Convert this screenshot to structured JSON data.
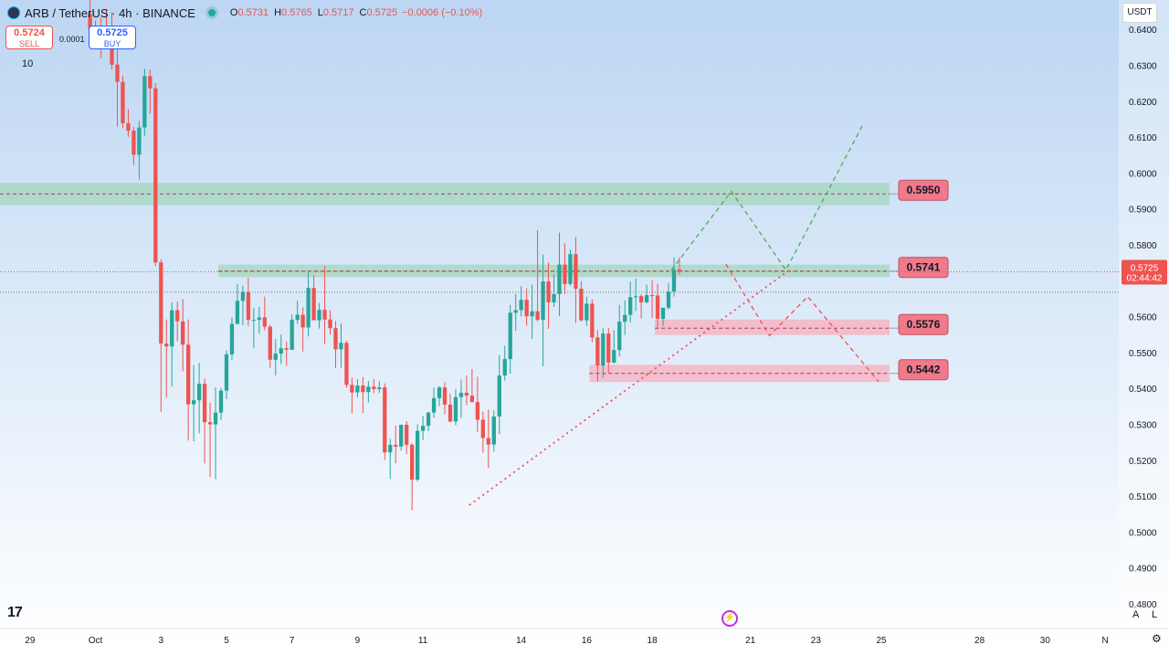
{
  "header": {
    "symbol": "ARB / TetherUS · 4h · BINANCE",
    "open_label": "O",
    "open": "0.5731",
    "high_label": "H",
    "high": "0.5765",
    "low_label": "L",
    "low": "0.5717",
    "close_label": "C",
    "close": "0.5725",
    "change": "−0.0006 (−0.10%)"
  },
  "trade": {
    "sell_price": "0.5724",
    "sell_label": "SELL",
    "buy_price": "0.5725",
    "buy_label": "BUY",
    "spread": "0.0001"
  },
  "indicator_count": "10",
  "currency_button": "USDT",
  "logo_text": "17",
  "scale_buttons": {
    "auto": "A",
    "log": "L"
  },
  "colors": {
    "up": "#26a69a",
    "down": "#ef5350",
    "bg_top": "#bcd6f3",
    "bg_bottom": "#ffffff",
    "support_zone": "#a8d8c4",
    "resistance_zone": "#f4b6c6",
    "level_badge": "#f07a8a"
  },
  "chart_data": {
    "type": "candlestick",
    "title": "",
    "x_type": "time-4h",
    "x_ticks": [
      {
        "label": "29",
        "bar": -11
      },
      {
        "label": "Oct",
        "bar": 1
      },
      {
        "label": "3",
        "bar": 13
      },
      {
        "label": "5",
        "bar": 25
      },
      {
        "label": "7",
        "bar": 37
      },
      {
        "label": "9",
        "bar": 49
      },
      {
        "label": "11",
        "bar": 61
      },
      {
        "label": "14",
        "bar": 79
      },
      {
        "label": "16",
        "bar": 91
      },
      {
        "label": "18",
        "bar": 103
      },
      {
        "label": "21",
        "bar": 121
      },
      {
        "label": "23",
        "bar": 133
      },
      {
        "label": "25",
        "bar": 145
      },
      {
        "label": "28",
        "bar": 163
      },
      {
        "label": "30",
        "bar": 175
      },
      {
        "label": "N",
        "bar": 186
      }
    ],
    "y_ticks": [
      "0.6400",
      "0.6300",
      "0.6200",
      "0.6100",
      "0.6000",
      "0.5900",
      "0.5800",
      "0.5700",
      "0.5600",
      "0.5500",
      "0.5400",
      "0.5300",
      "0.5200",
      "0.5100",
      "0.5000",
      "0.4900",
      "0.4800"
    ],
    "ylim": [
      0.4795,
      0.6482
    ],
    "xlim_bars": [
      -16,
      189
    ],
    "grid": false,
    "candles": [
      [
        0.6443,
        0.6496,
        0.6401,
        0.6371
      ],
      [
        0.6371,
        0.6425,
        0.641,
        0.6369
      ],
      [
        0.641,
        0.6433,
        0.6396,
        0.632
      ],
      [
        0.6396,
        0.6457,
        0.6367,
        0.6373
      ],
      [
        0.6367,
        0.6448,
        0.6302,
        0.6289
      ],
      [
        0.6302,
        0.6344,
        0.6254,
        0.6129
      ],
      [
        0.6254,
        0.6271,
        0.6139,
        0.6125
      ],
      [
        0.6139,
        0.6178,
        0.6118,
        0.6101
      ],
      [
        0.6118,
        0.6128,
        0.6051,
        0.6023
      ],
      [
        0.6051,
        0.6145,
        0.6127,
        0.5982
      ],
      [
        0.6127,
        0.6291,
        0.627,
        0.6104
      ],
      [
        0.627,
        0.6288,
        0.6236,
        0.6165
      ],
      [
        0.6236,
        0.625,
        0.5751,
        0.5741
      ],
      [
        0.5751,
        0.576,
        0.5525,
        0.5334
      ],
      [
        0.5525,
        0.5592,
        0.5517,
        0.5374
      ],
      [
        0.5517,
        0.564,
        0.5618,
        0.5406
      ],
      [
        0.5618,
        0.5642,
        0.5587,
        0.5531
      ],
      [
        0.5587,
        0.5649,
        0.5522,
        0.5448
      ],
      [
        0.5522,
        0.5592,
        0.5356,
        0.5255
      ],
      [
        0.5356,
        0.5465,
        0.5367,
        0.5253
      ],
      [
        0.5367,
        0.5471,
        0.5413,
        0.5275
      ],
      [
        0.5413,
        0.5428,
        0.5306,
        0.5191
      ],
      [
        0.5306,
        0.536,
        0.53,
        0.5153
      ],
      [
        0.53,
        0.5403,
        0.5333,
        0.5147
      ],
      [
        0.5333,
        0.5402,
        0.5394,
        0.5312
      ],
      [
        0.5394,
        0.5506,
        0.5495,
        0.537
      ],
      [
        0.5495,
        0.5598,
        0.558,
        0.5478
      ],
      [
        0.558,
        0.5691,
        0.5644,
        0.5578
      ],
      [
        0.5644,
        0.5686,
        0.5669,
        0.5576
      ],
      [
        0.5669,
        0.5708,
        0.5591,
        0.5574
      ],
      [
        0.5591,
        0.5624,
        0.5591,
        0.5512
      ],
      [
        0.5591,
        0.5627,
        0.5598,
        0.5553
      ],
      [
        0.5598,
        0.5656,
        0.5572,
        0.5562
      ],
      [
        0.5572,
        0.5577,
        0.548,
        0.5458
      ],
      [
        0.548,
        0.5538,
        0.5497,
        0.5436
      ],
      [
        0.5497,
        0.555,
        0.5512,
        0.5468
      ],
      [
        0.5512,
        0.5531,
        0.5508,
        0.5463
      ],
      [
        0.5508,
        0.5606,
        0.5591,
        0.5507
      ],
      [
        0.5591,
        0.5644,
        0.5605,
        0.558
      ],
      [
        0.5605,
        0.5626,
        0.557,
        0.5503
      ],
      [
        0.557,
        0.5724,
        0.568,
        0.5545
      ],
      [
        0.568,
        0.5716,
        0.559,
        0.559
      ],
      [
        0.559,
        0.5638,
        0.5619,
        0.5567
      ],
      [
        0.5619,
        0.5741,
        0.5592,
        0.5524
      ],
      [
        0.5592,
        0.5618,
        0.5568,
        0.555
      ],
      [
        0.5568,
        0.5588,
        0.5509,
        0.5457
      ],
      [
        0.5509,
        0.5581,
        0.5527,
        0.5458
      ],
      [
        0.5527,
        0.5533,
        0.541,
        0.5402
      ],
      [
        0.541,
        0.543,
        0.5389,
        0.5331
      ],
      [
        0.5389,
        0.5426,
        0.5408,
        0.5375
      ],
      [
        0.5408,
        0.5432,
        0.539,
        0.5332
      ],
      [
        0.539,
        0.5421,
        0.5405,
        0.5361
      ],
      [
        0.5405,
        0.5426,
        0.5398,
        0.5387
      ],
      [
        0.5398,
        0.542,
        0.5403,
        0.5387
      ],
      [
        0.5403,
        0.5414,
        0.5222,
        0.5201
      ],
      [
        0.5222,
        0.526,
        0.5243,
        0.5148
      ],
      [
        0.5243,
        0.5296,
        0.5238,
        0.5192
      ],
      [
        0.5238,
        0.5299,
        0.5299,
        0.5227
      ],
      [
        0.5299,
        0.5309,
        0.5243,
        0.5217
      ],
      [
        0.5243,
        0.5248,
        0.5146,
        0.5061
      ],
      [
        0.5146,
        0.53,
        0.5282,
        0.5141
      ],
      [
        0.5282,
        0.5324,
        0.5296,
        0.5256
      ],
      [
        0.5296,
        0.5335,
        0.5333,
        0.5281
      ],
      [
        0.5333,
        0.5403,
        0.5373,
        0.5318
      ],
      [
        0.5373,
        0.5407,
        0.5403,
        0.5351
      ],
      [
        0.5403,
        0.5418,
        0.5355,
        0.5328
      ],
      [
        0.5355,
        0.5385,
        0.5308,
        0.5306
      ],
      [
        0.5308,
        0.5398,
        0.5376,
        0.5297
      ],
      [
        0.5376,
        0.5425,
        0.5388,
        0.5318
      ],
      [
        0.5388,
        0.5436,
        0.538,
        0.5354
      ],
      [
        0.538,
        0.5454,
        0.5362,
        0.5362
      ],
      [
        0.5362,
        0.5433,
        0.5313,
        0.5278
      ],
      [
        0.5313,
        0.5336,
        0.5262,
        0.5221
      ],
      [
        0.5262,
        0.5341,
        0.5244,
        0.5178
      ],
      [
        0.5244,
        0.5339,
        0.5322,
        0.5224
      ],
      [
        0.5322,
        0.5493,
        0.5436,
        0.5273
      ],
      [
        0.5436,
        0.5519,
        0.5482,
        0.5422
      ],
      [
        0.5482,
        0.5633,
        0.5611,
        0.5441
      ],
      [
        0.5611,
        0.5663,
        0.5618,
        0.5561
      ],
      [
        0.5618,
        0.5685,
        0.5647,
        0.5601
      ],
      [
        0.5647,
        0.5679,
        0.5601,
        0.5575
      ],
      [
        0.5601,
        0.5689,
        0.5615,
        0.5538
      ],
      [
        0.5615,
        0.5841,
        0.5591,
        0.5587
      ],
      [
        0.5591,
        0.5773,
        0.5698,
        0.5462
      ],
      [
        0.5698,
        0.5751,
        0.564,
        0.5566
      ],
      [
        0.564,
        0.5719,
        0.5663,
        0.5627
      ],
      [
        0.5663,
        0.5834,
        0.5745,
        0.5602
      ],
      [
        0.5745,
        0.5804,
        0.5691,
        0.5663
      ],
      [
        0.5691,
        0.5787,
        0.5774,
        0.5686
      ],
      [
        0.5774,
        0.5822,
        0.5678,
        0.5582
      ],
      [
        0.5678,
        0.5699,
        0.559,
        0.5586
      ],
      [
        0.559,
        0.5655,
        0.5636,
        0.5574
      ],
      [
        0.5636,
        0.5648,
        0.5542,
        0.5529
      ],
      [
        0.5542,
        0.5563,
        0.5464,
        0.5419
      ],
      [
        0.5464,
        0.5569,
        0.5553,
        0.5431
      ],
      [
        0.5553,
        0.5569,
        0.5472,
        0.5444
      ],
      [
        0.5472,
        0.5562,
        0.5507,
        0.547
      ],
      [
        0.5507,
        0.5633,
        0.5586,
        0.5489
      ],
      [
        0.5586,
        0.5645,
        0.5605,
        0.5549
      ],
      [
        0.5605,
        0.5698,
        0.5654,
        0.5584
      ],
      [
        0.5654,
        0.5706,
        0.5657,
        0.5616
      ],
      [
        0.5657,
        0.5662,
        0.564,
        0.5595
      ],
      [
        0.564,
        0.5689,
        0.566,
        0.5637
      ],
      [
        0.566,
        0.5701,
        0.5659,
        0.5596
      ],
      [
        0.5659,
        0.5692,
        0.5594,
        0.557
      ],
      [
        0.5594,
        0.562,
        0.5625,
        0.5574
      ],
      [
        0.5625,
        0.5694,
        0.567,
        0.5619
      ],
      [
        0.567,
        0.5765,
        0.5731,
        0.5656
      ],
      [
        0.5731,
        0.5765,
        0.5725,
        0.5717
      ]
    ]
  },
  "annotations": {
    "zones": [
      {
        "type": "support",
        "label": "0.5950",
        "top": 0.5973,
        "bottom": 0.591,
        "mid": 0.5942,
        "from_bar": -16,
        "to_bar": 147
      },
      {
        "type": "support",
        "label": "0.5741",
        "top": 0.5745,
        "bottom": 0.571,
        "mid": 0.5727,
        "from_bar": 24,
        "to_bar": 147
      },
      {
        "type": "resistance",
        "label": "0.5576",
        "top": 0.5592,
        "bottom": 0.5549,
        "mid": 0.5568,
        "from_bar": 104,
        "to_bar": 147
      },
      {
        "type": "resistance",
        "label": "0.5442",
        "top": 0.5466,
        "bottom": 0.5418,
        "mid": 0.5442,
        "from_bar": 92,
        "to_bar": 147
      }
    ],
    "trendline": {
      "from": [
        70,
        0.5075
      ],
      "to": [
        129,
        0.5734
      ]
    },
    "bull_path": [
      [
        107,
        0.5729
      ],
      [
        118,
        0.5949
      ],
      [
        128,
        0.573
      ],
      [
        142,
        0.6131
      ]
    ],
    "bear_path": [
      [
        117,
        0.5747
      ],
      [
        125,
        0.5547
      ],
      [
        132,
        0.5656
      ],
      [
        145,
        0.5419
      ]
    ],
    "current_price": {
      "label": "0.5725",
      "countdown": "02:44:42",
      "value": 0.5725
    },
    "last_line": 0.5668
  }
}
